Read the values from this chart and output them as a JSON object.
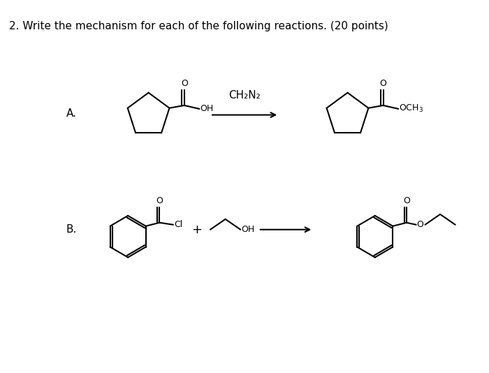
{
  "title": "2. Write the mechanism for each of the following reactions. (20 points)",
  "bg_color": "#ffffff",
  "label_A": "A.",
  "label_B": "B.",
  "reagent_A": "CH₂N₂",
  "line_color": "#000000",
  "line_width": 1.5,
  "fig_width": 7.0,
  "fig_height": 5.34,
  "title_fontsize": 11
}
